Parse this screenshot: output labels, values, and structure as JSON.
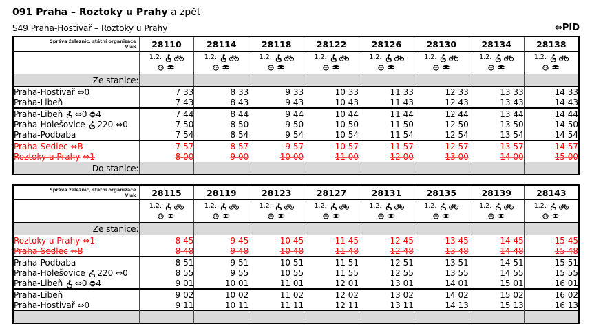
{
  "page": {
    "title_bold": "091 Praha – Roztoky u Prahy",
    "title_suffix": " a zpět",
    "subtitle": "S49 Praha-Hostivař – Roztoky u Prahy",
    "pid_arrow": "⇔",
    "pid_text": "PID"
  },
  "colors": {
    "red": "#ff0000",
    "gray_row": "#d9d9d9",
    "border": "#000000"
  },
  "icon_legend": {
    "class_label": "1.2.",
    "top_icons": [
      "wheelchair-icon",
      "bicycle-icon"
    ],
    "bottom_icons": [
      "low-floor-icon",
      "eye-icon"
    ]
  },
  "tables": [
    {
      "name": "outbound",
      "operator": "Správa železnic, státní organizace",
      "row_label": "Vlak",
      "trains": [
        "28110",
        "28114",
        "28118",
        "28122",
        "28126",
        "28130",
        "28134",
        "28138"
      ],
      "section_top": "Ze stanice:",
      "section_bottom": "Do stanice:",
      "rows": [
        {
          "station": "Praha-Hostivař",
          "suffix": [
            {
              "text": "⇔0"
            }
          ],
          "red": false,
          "sep": false,
          "times": [
            "7 33",
            "8 33",
            "9 33",
            "10 33",
            "11 33",
            "12 33",
            "13 33",
            "14 33"
          ]
        },
        {
          "station": "Praha-Libeň",
          "suffix": [],
          "red": false,
          "sep": false,
          "times": [
            "7 43",
            "8 43",
            "9 43",
            "10 43",
            "11 43",
            "12 43",
            "13 43",
            "14 43"
          ]
        },
        {
          "station": "Praha-Libeň",
          "suffix": [
            {
              "icon": "wheelchair-icon"
            },
            {
              "text": " ⇔0 "
            },
            {
              "icon": "line-badge-icon"
            },
            {
              "text": "4"
            }
          ],
          "red": false,
          "sep": true,
          "times": [
            "7 44",
            "8 44",
            "9 44",
            "10 44",
            "11 44",
            "12 44",
            "13 44",
            "14 44"
          ]
        },
        {
          "station": "Praha-Holešovice",
          "suffix": [
            {
              "icon": "wheelchair-icon"
            },
            {
              "text": " 220 ⇔0"
            }
          ],
          "red": false,
          "sep": false,
          "times": [
            "7 50",
            "8 50",
            "9 50",
            "10 50",
            "11 50",
            "12 50",
            "13 50",
            "14 50"
          ]
        },
        {
          "station": "Praha-Podbaba",
          "suffix": [],
          "red": false,
          "sep": false,
          "times": [
            "7 54",
            "8 54",
            "9 54",
            "10 54",
            "11 54",
            "12 54",
            "13 54",
            "14 54"
          ]
        },
        {
          "station": "Praha-Sedlec",
          "suffix": [
            {
              "text": "⇔B"
            }
          ],
          "red": true,
          "sep": true,
          "times": [
            "7 57",
            "8 57",
            "9 57",
            "10 57",
            "11 57",
            "12 57",
            "13 57",
            "14 57"
          ]
        },
        {
          "station": "Roztoky u Prahy",
          "suffix": [
            {
              "text": " ⇔1"
            }
          ],
          "red": true,
          "sep": false,
          "times": [
            "8 00",
            "9 00",
            "10 00",
            "11 00",
            "12 00",
            "13 00",
            "14 00",
            "15 00"
          ]
        }
      ]
    },
    {
      "name": "return",
      "operator": "Správa železnic, státní organizace",
      "row_label": "Vlak",
      "trains": [
        "28115",
        "28119",
        "28123",
        "28127",
        "28131",
        "28135",
        "28139",
        "28143"
      ],
      "section_top": "Ze stanice:",
      "section_bottom": "",
      "rows": [
        {
          "station": "Roztoky u Prahy",
          "suffix": [
            {
              "text": " ⇔1"
            }
          ],
          "red": true,
          "sep": false,
          "times": [
            "8 45",
            "9 45",
            "10 45",
            "11 45",
            "12 45",
            "13 45",
            "14 45",
            "15 45"
          ]
        },
        {
          "station": "Praha-Sedlec",
          "suffix": [
            {
              "text": "⇔B"
            }
          ],
          "red": true,
          "sep": false,
          "times": [
            "8 48",
            "9 48",
            "10 48",
            "11 48",
            "12 48",
            "13 48",
            "14 48",
            "15 48"
          ]
        },
        {
          "station": "Praha-Podbaba",
          "suffix": [],
          "red": false,
          "sep": true,
          "times": [
            "8 51",
            "9 51",
            "10 51",
            "11 51",
            "12 51",
            "13 51",
            "14 51",
            "15 51"
          ]
        },
        {
          "station": "Praha-Holešovice",
          "suffix": [
            {
              "icon": "wheelchair-icon"
            },
            {
              "text": " 220 ⇔0"
            }
          ],
          "red": false,
          "sep": false,
          "times": [
            "8 55",
            "9 55",
            "10 55",
            "11 55",
            "12 55",
            "13 55",
            "14 55",
            "15 55"
          ]
        },
        {
          "station": "Praha-Libeň",
          "suffix": [
            {
              "icon": "wheelchair-icon"
            },
            {
              "text": " ⇔0 "
            },
            {
              "icon": "line-badge-icon"
            },
            {
              "text": "4"
            }
          ],
          "red": false,
          "sep": false,
          "times": [
            "9 01",
            "10 01",
            "11 01",
            "12 01",
            "13 01",
            "14 01",
            "15 01",
            "16 01"
          ]
        },
        {
          "station": "Praha-Libeň",
          "suffix": [],
          "red": false,
          "sep": true,
          "times": [
            "9 02",
            "10 02",
            "11 02",
            "12 02",
            "13 02",
            "14 02",
            "15 02",
            "16 02"
          ]
        },
        {
          "station": "Praha-Hostivař",
          "suffix": [
            {
              "text": "⇔0"
            }
          ],
          "red": false,
          "sep": false,
          "times": [
            "9 11",
            "10 11",
            "11 11",
            "12 11",
            "13 11",
            "14 13",
            "15 13",
            "16 13"
          ]
        }
      ]
    }
  ]
}
